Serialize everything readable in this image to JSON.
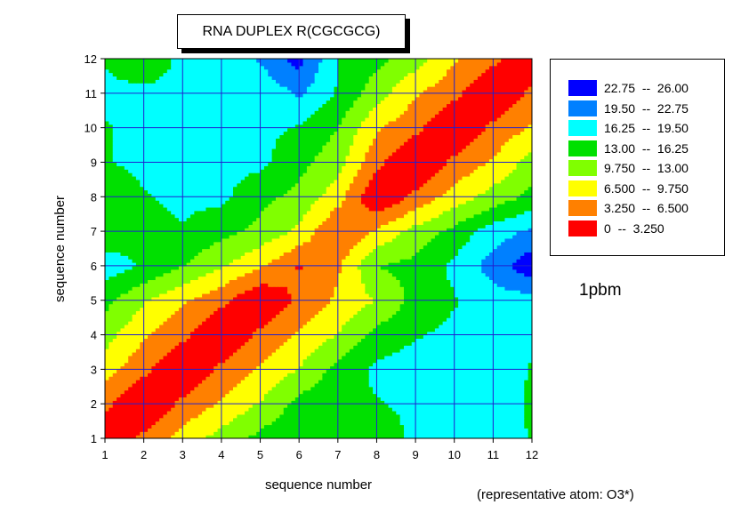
{
  "title": "RNA DUPLEX R(CGCGCG)",
  "code_label": "1pbm",
  "footnote": "(representative atom: O3*)",
  "chart_data": {
    "type": "heatmap",
    "subtype": "filled-contour",
    "xlabel": "sequence number",
    "ylabel": "sequence number",
    "xlim": [
      1,
      12
    ],
    "ylim": [
      1,
      12
    ],
    "xticks": [
      "1",
      "2",
      "3",
      "4",
      "5",
      "6",
      "7",
      "8",
      "9",
      "10",
      "11",
      "12"
    ],
    "yticks": [
      "1",
      "2",
      "3",
      "4",
      "5",
      "6",
      "7",
      "8",
      "9",
      "10",
      "11",
      "12"
    ],
    "grid": true,
    "grid_color": "#2020d0",
    "legend_position": "right",
    "legend": [
      {
        "label": "22.75  --  26.00",
        "color": "#0000ff",
        "min": 22.75,
        "max": 26.0
      },
      {
        "label": "19.50  --  22.75",
        "color": "#0080ff",
        "min": 19.5,
        "max": 22.75
      },
      {
        "label": "16.25  --  19.50",
        "color": "#00ffff",
        "min": 16.25,
        "max": 19.5
      },
      {
        "label": "13.00  --  16.25",
        "color": "#00e000",
        "min": 13.0,
        "max": 16.25
      },
      {
        "label": "9.750  --  13.00",
        "color": "#80ff00",
        "min": 9.75,
        "max": 13.0
      },
      {
        "label": "6.500  --  9.750",
        "color": "#ffff00",
        "min": 6.5,
        "max": 9.75
      },
      {
        "label": "3.250  --  6.500",
        "color": "#ff8000",
        "min": 3.25,
        "max": 6.5
      },
      {
        "label": "0  --  3.250",
        "color": "#ff0000",
        "min": 0.0,
        "max": 3.25
      }
    ],
    "z": [
      [
        0,
        4,
        8,
        11,
        14,
        16,
        16,
        14,
        17,
        18,
        18,
        16
      ],
      [
        4,
        0,
        4,
        7,
        10,
        14,
        16,
        16,
        17,
        17,
        17,
        16
      ],
      [
        8,
        4,
        0,
        4,
        7,
        10,
        14,
        17,
        18,
        18,
        18,
        16
      ],
      [
        11,
        7,
        4,
        0,
        4,
        7,
        10,
        14,
        16,
        17,
        18,
        17
      ],
      [
        14,
        10,
        7,
        4,
        0,
        4,
        7,
        10,
        14,
        16,
        18,
        18
      ],
      [
        18,
        16,
        13,
        10,
        7,
        3,
        6,
        13,
        14,
        17,
        21,
        25
      ],
      [
        14,
        15,
        16,
        14,
        12,
        9,
        3,
        7,
        11,
        14,
        18,
        20
      ],
      [
        14,
        16,
        17,
        17,
        14,
        12,
        8,
        0,
        4,
        8,
        11,
        14
      ],
      [
        16,
        17,
        18,
        17,
        17,
        14,
        11,
        4,
        0,
        4,
        7,
        11
      ],
      [
        16,
        17,
        17,
        17,
        17,
        16,
        13,
        7,
        4,
        0,
        4,
        7
      ],
      [
        17,
        17,
        17,
        17,
        17,
        20,
        16,
        11,
        7,
        4,
        0,
        4
      ],
      [
        16,
        14,
        17,
        17,
        20,
        24,
        16,
        14,
        11,
        7,
        4,
        0
      ]
    ]
  }
}
